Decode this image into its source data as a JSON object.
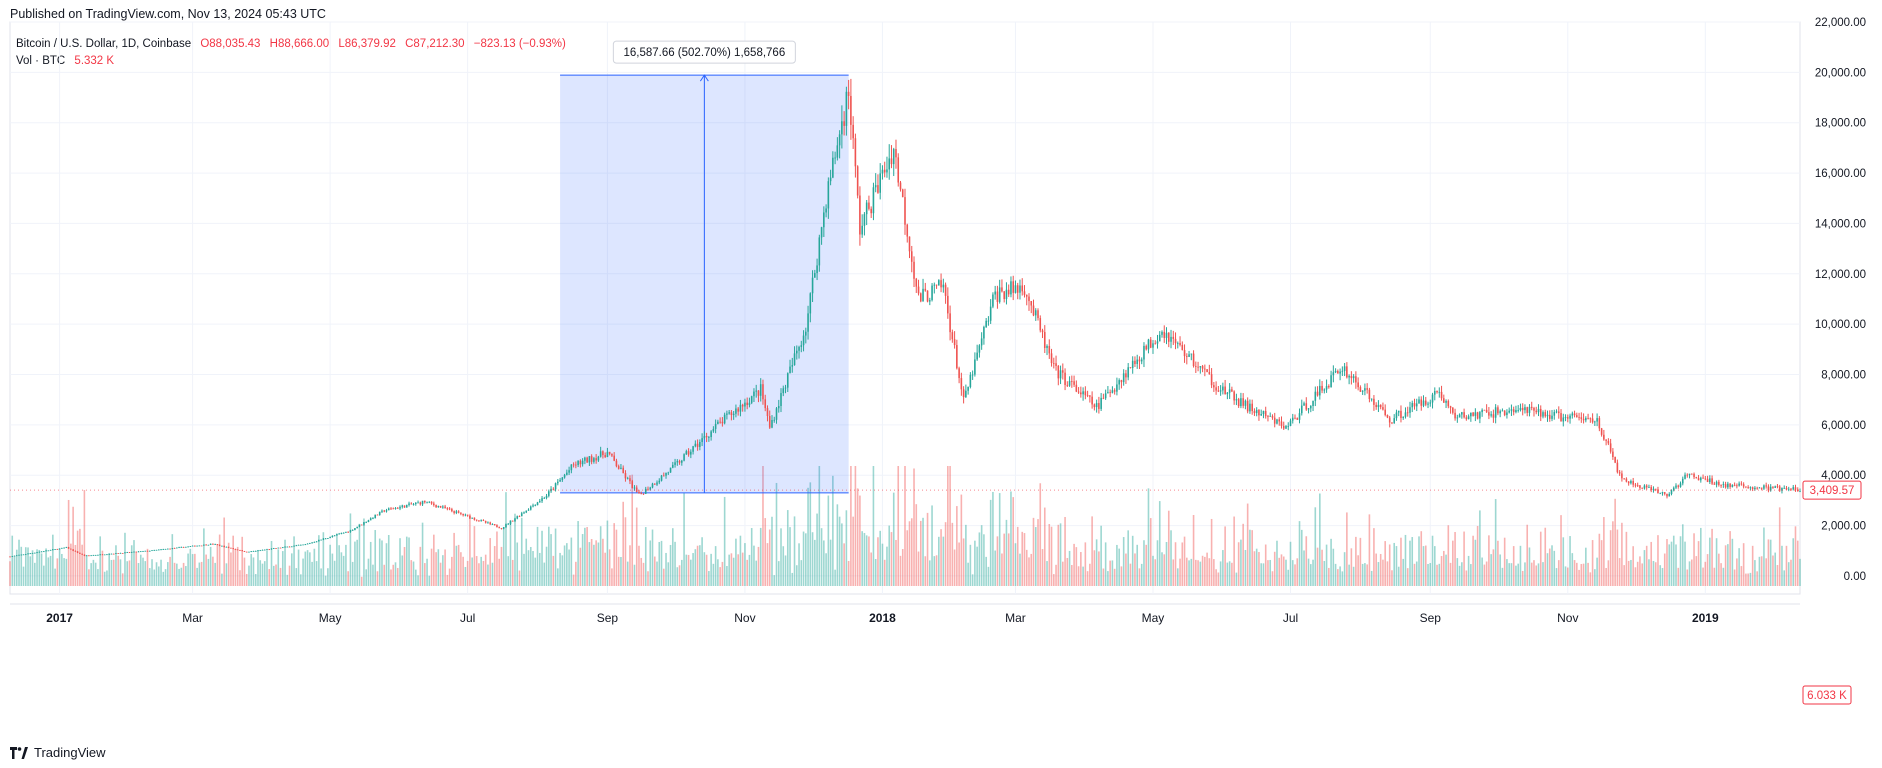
{
  "header": {
    "published": "Published on TradingView.com, Nov 13, 2024 05:43 UTC"
  },
  "legend": {
    "symbol": "Bitcoin / U.S. Dollar, 1D, Coinbase",
    "open": "O88,035.43",
    "high": "H88,666.00",
    "low": "L86,379.92",
    "close": "C87,212.30",
    "change": "−823.13 (−0.93%)",
    "vol_label": "Vol · BTC",
    "vol_value": "5.332 K"
  },
  "measure": {
    "label": "16,587.66 (502.70%) 1,658,766",
    "start_date": "2017-08-11",
    "end_date": "2017-12-17",
    "low": 3300,
    "high": 19891
  },
  "price_label": "3,409.57",
  "volume_label": "6.033 K",
  "footer": {
    "brand": "TradingView"
  },
  "colors": {
    "up": "#26a69a",
    "down": "#ef5350",
    "measure_fill": "#2962ff",
    "measure_line": "#2962ff",
    "label_red": "#f23645"
  },
  "chart_data": {
    "type": "candlestick",
    "x_range": [
      "2016-12-10",
      "2019-02-12"
    ],
    "ylim": [
      -400,
      22000
    ],
    "grid": true,
    "y_ticks": [
      "22,000.00",
      "20,000.00",
      "18,000.00",
      "16,000.00",
      "14,000.00",
      "12,000.00",
      "10,000.00",
      "8,000.00",
      "6,000.00",
      "4,000.00",
      "2,000.00",
      "0.00"
    ],
    "y_tick_values": [
      22000,
      20000,
      18000,
      16000,
      14000,
      12000,
      10000,
      8000,
      6000,
      4000,
      2000,
      0
    ],
    "x_ticks": [
      "2017",
      "Mar",
      "May",
      "Jul",
      "Sep",
      "Nov",
      "2018",
      "Mar",
      "May",
      "Jul",
      "Sep",
      "Nov",
      "2019"
    ],
    "x_tick_dates": [
      "2017-01-01",
      "2017-03-01",
      "2017-05-01",
      "2017-07-01",
      "2017-09-01",
      "2017-11-01",
      "2018-01-01",
      "2018-03-01",
      "2018-05-01",
      "2018-07-01",
      "2018-09-01",
      "2018-11-01",
      "2019-01-01"
    ],
    "bold_x_ticks": [
      "2017",
      "2018",
      "2019"
    ],
    "price_path": [
      [
        "2016-12-10",
        770
      ],
      [
        "2017-01-04",
        1130
      ],
      [
        "2017-01-12",
        800
      ],
      [
        "2017-02-10",
        1000
      ],
      [
        "2017-03-10",
        1270
      ],
      [
        "2017-03-25",
        950
      ],
      [
        "2017-04-20",
        1250
      ],
      [
        "2017-05-10",
        1800
      ],
      [
        "2017-05-25",
        2600
      ],
      [
        "2017-06-12",
        2950
      ],
      [
        "2017-07-16",
        1900
      ],
      [
        "2017-08-05",
        3200
      ],
      [
        "2017-08-17",
        4400
      ],
      [
        "2017-09-01",
        4900
      ],
      [
        "2017-09-15",
        3200
      ],
      [
        "2017-09-30",
        4300
      ],
      [
        "2017-10-20",
        6000
      ],
      [
        "2017-11-08",
        7400
      ],
      [
        "2017-11-12",
        5900
      ],
      [
        "2017-11-28",
        9900
      ],
      [
        "2017-12-07",
        15000
      ],
      [
        "2017-12-17",
        19300
      ],
      [
        "2017-12-22",
        13800
      ],
      [
        "2018-01-06",
        17000
      ],
      [
        "2018-01-17",
        11000
      ],
      [
        "2018-01-28",
        11500
      ],
      [
        "2018-02-06",
        6900
      ],
      [
        "2018-02-20",
        11200
      ],
      [
        "2018-03-05",
        11500
      ],
      [
        "2018-03-18",
        8200
      ],
      [
        "2018-04-06",
        6700
      ],
      [
        "2018-05-05",
        9800
      ],
      [
        "2018-05-30",
        7500
      ],
      [
        "2018-06-12",
        6700
      ],
      [
        "2018-06-29",
        5900
      ],
      [
        "2018-07-24",
        8300
      ],
      [
        "2018-08-14",
        6200
      ],
      [
        "2018-09-05",
        7300
      ],
      [
        "2018-09-12",
        6300
      ],
      [
        "2018-10-10",
        6600
      ],
      [
        "2018-10-31",
        6300
      ],
      [
        "2018-11-14",
        6200
      ],
      [
        "2018-11-25",
        3800
      ],
      [
        "2018-12-15",
        3200
      ],
      [
        "2018-12-24",
        4000
      ],
      [
        "2019-01-10",
        3600
      ],
      [
        "2019-02-12",
        3410
      ]
    ]
  }
}
